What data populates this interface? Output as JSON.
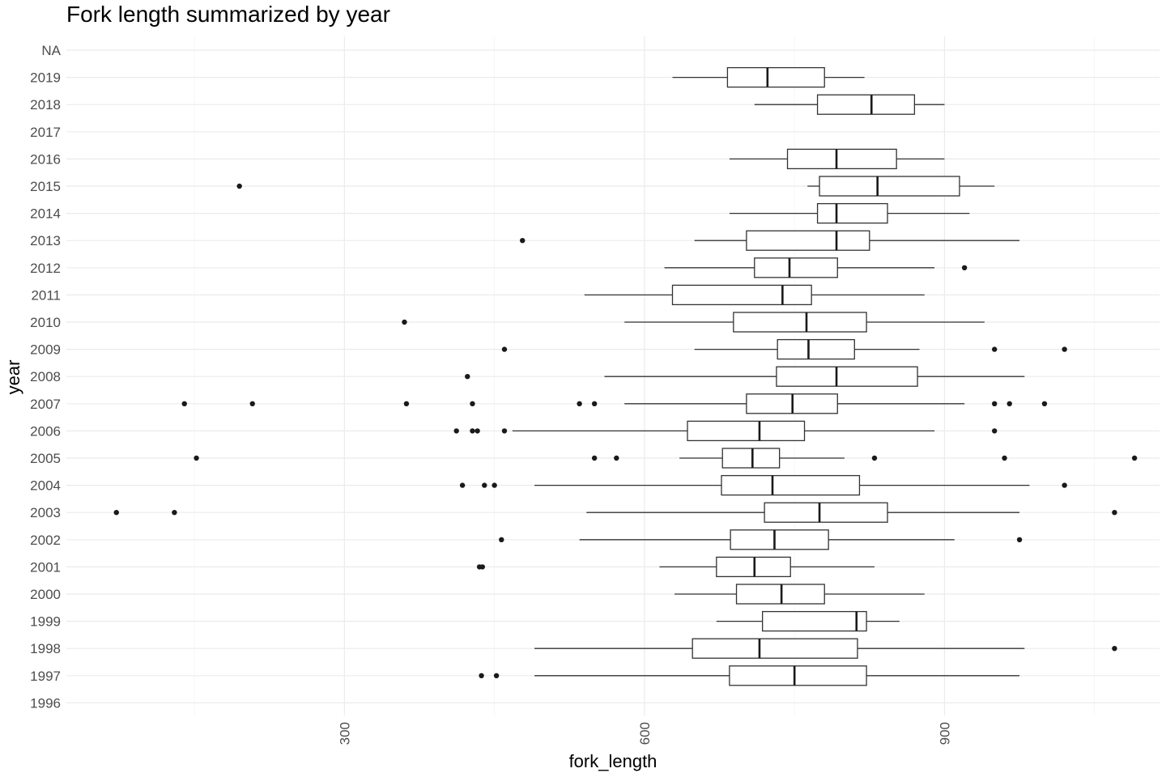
{
  "chart_data": {
    "type": "boxplot",
    "orientation": "horizontal",
    "title": "Fork length summarized by year",
    "xlabel": "fork_length",
    "ylabel": "year",
    "xlim": [
      22,
      1115
    ],
    "x_ticks": [
      300,
      600,
      900
    ],
    "x_tick_labels": [
      "300",
      "600",
      "900"
    ],
    "x_minor_ticks": [
      150,
      450,
      750,
      1050
    ],
    "grid": true,
    "legend": "none",
    "categories": [
      "1996",
      "1997",
      "1998",
      "1999",
      "2000",
      "2001",
      "2002",
      "2003",
      "2004",
      "2005",
      "2006",
      "2007",
      "2008",
      "2009",
      "2010",
      "2011",
      "2012",
      "2013",
      "2014",
      "2015",
      "2016",
      "2017",
      "2018",
      "2019",
      "NA"
    ],
    "boxes": [
      {
        "year": "1996",
        "min": null,
        "q1": null,
        "median": null,
        "q3": null,
        "max": null,
        "outliers": []
      },
      {
        "year": "1997",
        "min": 490,
        "q1": 685,
        "median": 750,
        "q3": 822,
        "max": 975,
        "outliers": [
          437,
          452
        ]
      },
      {
        "year": "1998",
        "min": 490,
        "q1": 648,
        "median": 715,
        "q3": 813,
        "max": 980,
        "outliers": [
          1070
        ]
      },
      {
        "year": "1999",
        "min": 672,
        "q1": 718,
        "median": 812,
        "q3": 822,
        "max": 855,
        "outliers": []
      },
      {
        "year": "2000",
        "min": 630,
        "q1": 692,
        "median": 737,
        "q3": 780,
        "max": 880,
        "outliers": []
      },
      {
        "year": "2001",
        "min": 615,
        "q1": 672,
        "median": 710,
        "q3": 746,
        "max": 830,
        "outliers": [
          435,
          438
        ]
      },
      {
        "year": "2002",
        "min": 535,
        "q1": 686,
        "median": 730,
        "q3": 784,
        "max": 910,
        "outliers": [
          457,
          975
        ]
      },
      {
        "year": "2003",
        "min": 542,
        "q1": 720,
        "median": 775,
        "q3": 843,
        "max": 975,
        "outliers": [
          72,
          130,
          1070
        ]
      },
      {
        "year": "2004",
        "min": 490,
        "q1": 677,
        "median": 728,
        "q3": 815,
        "max": 985,
        "outliers": [
          418,
          440,
          450,
          1020
        ]
      },
      {
        "year": "2005",
        "min": 635,
        "q1": 678,
        "median": 708,
        "q3": 735,
        "max": 800,
        "outliers": [
          152,
          550,
          572,
          830,
          960,
          1090
        ]
      },
      {
        "year": "2006",
        "min": 468,
        "q1": 643,
        "median": 715,
        "q3": 760,
        "max": 890,
        "outliers": [
          412,
          428,
          433,
          460,
          950
        ]
      },
      {
        "year": "2007",
        "min": 580,
        "q1": 702,
        "median": 748,
        "q3": 793,
        "max": 920,
        "outliers": [
          140,
          208,
          362,
          428,
          535,
          550,
          950,
          965,
          1000
        ]
      },
      {
        "year": "2008",
        "min": 560,
        "q1": 732,
        "median": 792,
        "q3": 873,
        "max": 980,
        "outliers": [
          423
        ]
      },
      {
        "year": "2009",
        "min": 650,
        "q1": 733,
        "median": 764,
        "q3": 810,
        "max": 875,
        "outliers": [
          460,
          950,
          1020
        ]
      },
      {
        "year": "2010",
        "min": 580,
        "q1": 689,
        "median": 762,
        "q3": 822,
        "max": 940,
        "outliers": [
          360
        ]
      },
      {
        "year": "2011",
        "min": 540,
        "q1": 628,
        "median": 738,
        "q3": 767,
        "max": 880,
        "outliers": []
      },
      {
        "year": "2012",
        "min": 620,
        "q1": 710,
        "median": 745,
        "q3": 793,
        "max": 890,
        "outliers": [
          920
        ]
      },
      {
        "year": "2013",
        "min": 650,
        "q1": 702,
        "median": 792,
        "q3": 825,
        "max": 975,
        "outliers": [
          478
        ]
      },
      {
        "year": "2014",
        "min": 685,
        "q1": 773,
        "median": 792,
        "q3": 843,
        "max": 925,
        "outliers": []
      },
      {
        "year": "2015",
        "min": 763,
        "q1": 775,
        "median": 833,
        "q3": 915,
        "max": 950,
        "outliers": [
          195
        ]
      },
      {
        "year": "2016",
        "min": 685,
        "q1": 743,
        "median": 792,
        "q3": 852,
        "max": 900,
        "outliers": []
      },
      {
        "year": "2017",
        "min": null,
        "q1": null,
        "median": null,
        "q3": null,
        "max": null,
        "outliers": []
      },
      {
        "year": "2018",
        "min": 710,
        "q1": 773,
        "median": 827,
        "q3": 870,
        "max": 900,
        "outliers": []
      },
      {
        "year": "2019",
        "min": 628,
        "q1": 683,
        "median": 723,
        "q3": 780,
        "max": 820,
        "outliers": []
      },
      {
        "year": "NA",
        "min": null,
        "q1": null,
        "median": null,
        "q3": null,
        "max": null,
        "outliers": []
      }
    ]
  }
}
